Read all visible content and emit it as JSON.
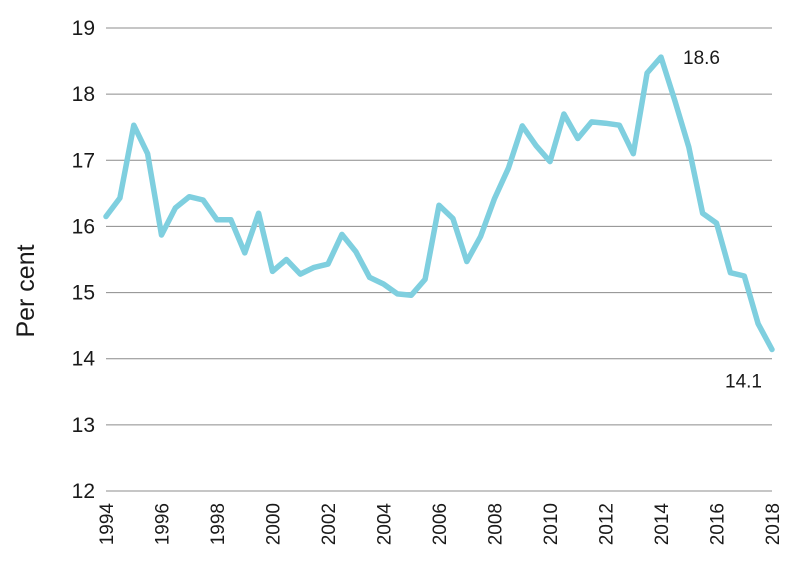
{
  "chart_data": {
    "type": "line",
    "title": "",
    "xlabel": "",
    "ylabel": "Per cent",
    "xlim": [
      1994,
      2018
    ],
    "ylim": [
      12,
      19
    ],
    "yticks": [
      12,
      13,
      14,
      15,
      16,
      17,
      18,
      19
    ],
    "xticks": [
      1994,
      1996,
      1998,
      2000,
      2002,
      2004,
      2006,
      2008,
      2010,
      2012,
      2014,
      2016,
      2018
    ],
    "grid": "horizontal",
    "color": "#7fcfdf",
    "series": [
      {
        "x": [
          1994,
          1994.5,
          1995,
          1995.5,
          1996,
          1996.5,
          1997,
          1997.5,
          1998,
          1998.5,
          1999,
          1999.5,
          2000,
          2000.5,
          2001,
          2001.5,
          2002,
          2002.5,
          2003,
          2003.5,
          2004,
          2004.5,
          2005,
          2005.5,
          2006,
          2006.5,
          2007,
          2007.5,
          2008,
          2008.5,
          2009,
          2009.5,
          2010,
          2010.5,
          2011,
          2011.5,
          2012,
          2012.5,
          2013,
          2013.5,
          2014,
          2014.5,
          2015,
          2015.5,
          2016,
          2016.5,
          2017,
          2017.5,
          2018
        ],
        "values": [
          16.15,
          16.43,
          17.53,
          17.1,
          15.87,
          16.28,
          16.45,
          16.4,
          16.1,
          16.1,
          15.6,
          16.2,
          15.32,
          15.5,
          15.28,
          15.38,
          15.43,
          15.88,
          15.62,
          15.23,
          15.13,
          14.98,
          14.96,
          15.2,
          16.32,
          16.12,
          15.47,
          15.85,
          16.42,
          16.88,
          17.52,
          17.22,
          16.98,
          17.7,
          17.33,
          17.58,
          17.56,
          17.53,
          17.1,
          18.32,
          18.56,
          17.9,
          17.2,
          16.2,
          16.05,
          15.3,
          15.25,
          14.53,
          14.14
        ]
      }
    ],
    "annotations": [
      {
        "text": "18.6",
        "x": 2014,
        "y": 18.56
      },
      {
        "text": "14.1",
        "x": 2018,
        "y": 14.14
      }
    ]
  }
}
